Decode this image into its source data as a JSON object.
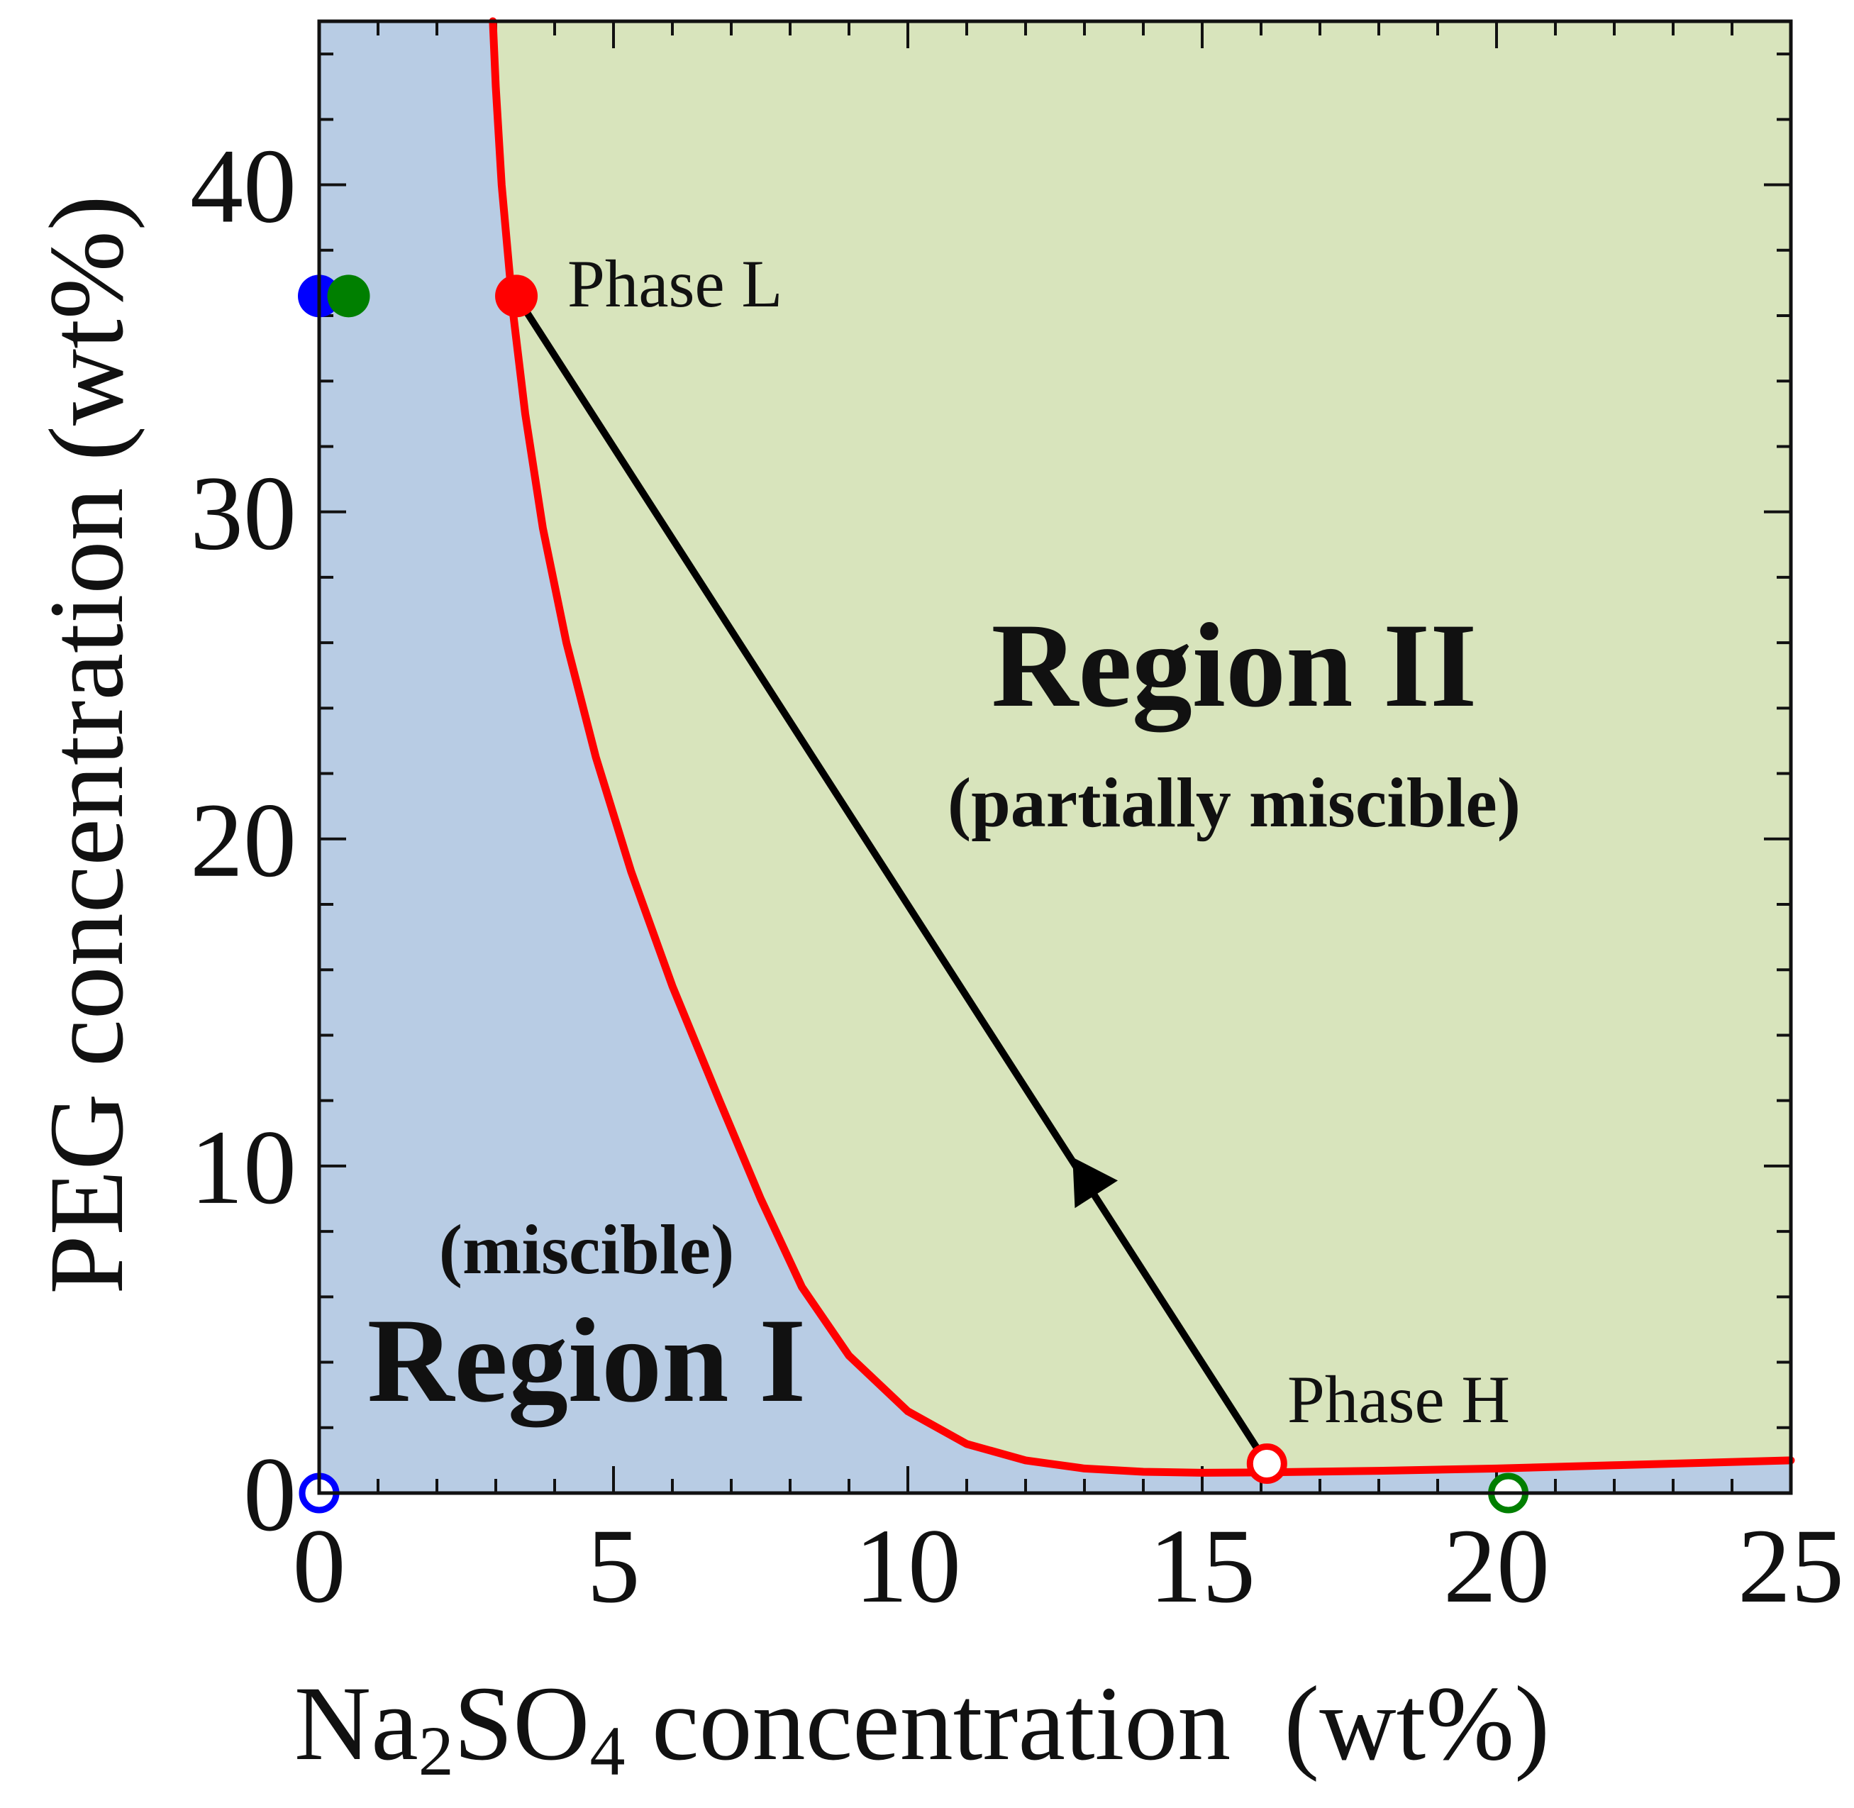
{
  "chart_data": {
    "type": "line",
    "title": "",
    "xlabel": {
      "prefix": "Na",
      "sub1": "2",
      "mid": "SO",
      "sub2": "4",
      "suffix": " concentration  (wt%)"
    },
    "ylabel": "PEG concentration  (wt%)",
    "xlim": [
      0,
      25
    ],
    "ylim": [
      0,
      45
    ],
    "xticks": [
      "0",
      "5",
      "10",
      "15",
      "20",
      "25"
    ],
    "xtick_values": [
      0,
      5,
      10,
      15,
      20,
      25
    ],
    "yticks": [
      "0",
      "10",
      "20",
      "30",
      "40"
    ],
    "ytick_values": [
      0,
      10,
      20,
      30,
      40
    ],
    "series": [
      {
        "name": "binodal",
        "color": "#ff0000",
        "x": [
          2.95,
          3.0,
          3.1,
          3.2,
          3.3,
          3.5,
          3.8,
          4.2,
          4.7,
          5.3,
          6.0,
          6.8,
          7.5,
          8.2,
          9.0,
          10.0,
          11.0,
          12.0,
          13.0,
          14.0,
          15.0,
          16.0,
          18.0,
          20.0,
          22.0,
          25.0
        ],
        "y": [
          45.0,
          43.0,
          40.0,
          38.0,
          36.0,
          33.0,
          29.5,
          26.0,
          22.5,
          19.0,
          15.5,
          12.0,
          9.0,
          6.3,
          4.2,
          2.5,
          1.5,
          1.0,
          0.75,
          0.65,
          0.62,
          0.63,
          0.68,
          0.75,
          0.85,
          1.0
        ]
      },
      {
        "name": "tie-line",
        "color": "#000000",
        "x": [
          3.35,
          16.1
        ],
        "y": [
          36.6,
          0.9
        ]
      }
    ],
    "points": [
      {
        "name": "blue-filled",
        "x": 0.0,
        "y": 36.6,
        "color": "#0000ff",
        "filled": true
      },
      {
        "name": "green-filled",
        "x": 0.5,
        "y": 36.6,
        "color": "#007f00",
        "filled": true
      },
      {
        "name": "phase-l",
        "x": 3.35,
        "y": 36.6,
        "color": "#ff0000",
        "filled": true
      },
      {
        "name": "phase-h",
        "x": 16.1,
        "y": 0.9,
        "color": "#ff0000",
        "filled": false
      },
      {
        "name": "blue-open",
        "x": 0.0,
        "y": 0.0,
        "color": "#0000ff",
        "filled": false
      },
      {
        "name": "green-open",
        "x": 20.2,
        "y": 0.0,
        "color": "#007f00",
        "filled": false
      }
    ],
    "arrow": {
      "x": 13.0,
      "y": 9.7,
      "direction": "toward Phase L"
    },
    "annotations": {
      "phase_l": "Phase L",
      "phase_h": "Phase H",
      "region_ii_title": "Region II",
      "region_ii_sub": "(partially miscible)",
      "region_i_title": "Region I",
      "region_i_sub": "(miscible)"
    },
    "colors": {
      "region_i": "#b8cce4",
      "region_ii": "#d8e4bc",
      "binodal": "#ff0000",
      "tie_line": "#000000"
    }
  }
}
